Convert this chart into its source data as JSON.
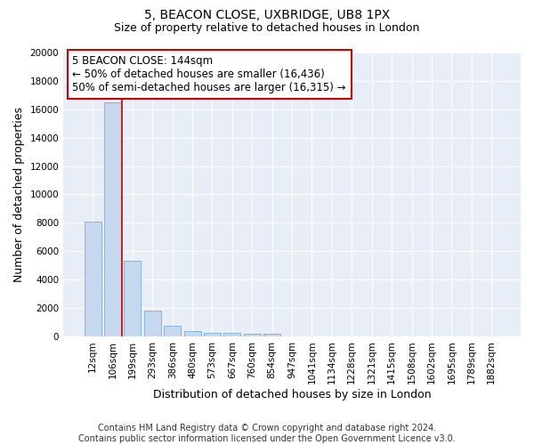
{
  "title": "5, BEACON CLOSE, UXBRIDGE, UB8 1PX",
  "subtitle": "Size of property relative to detached houses in London",
  "xlabel": "Distribution of detached houses by size in London",
  "ylabel": "Number of detached properties",
  "categories": [
    "12sqm",
    "106sqm",
    "199sqm",
    "293sqm",
    "386sqm",
    "480sqm",
    "573sqm",
    "667sqm",
    "760sqm",
    "854sqm",
    "947sqm",
    "1041sqm",
    "1134sqm",
    "1228sqm",
    "1321sqm",
    "1415sqm",
    "1508sqm",
    "1602sqm",
    "1695sqm",
    "1789sqm",
    "1882sqm"
  ],
  "values": [
    8100,
    16500,
    5300,
    1800,
    750,
    350,
    270,
    220,
    190,
    170,
    0,
    0,
    0,
    0,
    0,
    0,
    0,
    0,
    0,
    0,
    0
  ],
  "bar_color": "#c5d8f0",
  "bar_edge_color": "#7aadd4",
  "vline_x": 1.48,
  "vline_color": "#cc0000",
  "annotation_text": "5 BEACON CLOSE: 144sqm\n← 50% of detached houses are smaller (16,436)\n50% of semi-detached houses are larger (16,315) →",
  "annotation_box_color": "#ffffff",
  "annotation_box_edge_color": "#cc0000",
  "ylim": [
    0,
    20000
  ],
  "yticks": [
    0,
    2000,
    4000,
    6000,
    8000,
    10000,
    12000,
    14000,
    16000,
    18000,
    20000
  ],
  "footer_line1": "Contains HM Land Registry data © Crown copyright and database right 2024.",
  "footer_line2": "Contains public sector information licensed under the Open Government Licence v3.0.",
  "bg_color": "#ffffff",
  "plot_bg_color": "#e8eef8",
  "grid_color": "#ffffff",
  "title_fontsize": 10,
  "subtitle_fontsize": 9,
  "axis_label_fontsize": 9,
  "tick_fontsize": 7.5,
  "footer_fontsize": 7
}
